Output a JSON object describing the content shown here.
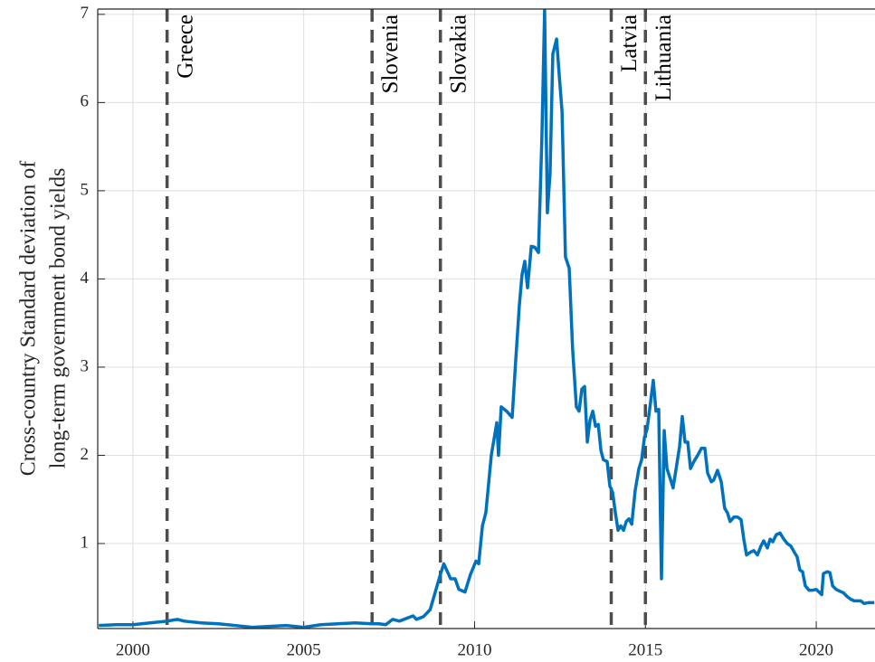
{
  "chart_data": {
    "type": "line",
    "ylabel": [
      "Cross-country Standard deviation of",
      "long-term government bond yields"
    ],
    "color": "#0072bd",
    "xlim": [
      1998.97,
      2021.72
    ],
    "ylim": [
      0.036,
      7.06
    ],
    "xticks": [
      2000,
      2005,
      2010,
      2015,
      2020
    ],
    "yticks": [
      1,
      2,
      3,
      4,
      5,
      6,
      7
    ],
    "grid": true,
    "annotations": [
      {
        "x": 2001,
        "label": "Greece"
      },
      {
        "x": 2007,
        "label": "Slovenia"
      },
      {
        "x": 2009,
        "label": "Slovakia"
      },
      {
        "x": 2014,
        "label": "Latvia"
      },
      {
        "x": 2015,
        "label": "Lithuania"
      }
    ],
    "x": [
      1999.0,
      1999.5,
      2000.0,
      2000.5,
      2001.0,
      2001.3,
      2001.5,
      2002.0,
      2002.5,
      2003.0,
      2003.5,
      2004.0,
      2004.5,
      2005.0,
      2005.5,
      2006.0,
      2006.5,
      2007.0,
      2007.2,
      2007.4,
      2007.6,
      2007.8,
      2008.0,
      2008.2,
      2008.3,
      2008.5,
      2008.7,
      2008.85,
      2009.0,
      2009.1,
      2009.3,
      2009.43,
      2009.54,
      2009.72,
      2009.88,
      2010.04,
      2010.12,
      2010.23,
      2010.33,
      2010.49,
      2010.65,
      2010.7,
      2010.78,
      2010.94,
      2011.1,
      2011.2,
      2011.31,
      2011.39,
      2011.47,
      2011.55,
      2011.66,
      2011.76,
      2011.87,
      2011.97,
      2012.05,
      2012.13,
      2012.21,
      2012.29,
      2012.4,
      2012.48,
      2012.56,
      2012.66,
      2012.77,
      2012.87,
      2012.98,
      2013.06,
      2013.14,
      2013.22,
      2013.3,
      2013.38,
      2013.46,
      2013.54,
      2013.62,
      2013.7,
      2013.77,
      2013.88,
      2013.96,
      2014.04,
      2014.12,
      2014.2,
      2014.28,
      2014.36,
      2014.44,
      2014.52,
      2014.6,
      2014.7,
      2014.81,
      2014.89,
      2014.97,
      2015.05,
      2015.15,
      2015.23,
      2015.31,
      2015.39,
      2015.47,
      2015.55,
      2015.63,
      2015.74,
      2015.81,
      2015.92,
      2016.0,
      2016.08,
      2016.16,
      2016.24,
      2016.32,
      2016.42,
      2016.53,
      2016.64,
      2016.74,
      2016.82,
      2016.93,
      2017.0,
      2017.11,
      2017.22,
      2017.32,
      2017.4,
      2017.48,
      2017.59,
      2017.7,
      2017.8,
      2017.88,
      2017.96,
      2018.07,
      2018.17,
      2018.28,
      2018.38,
      2018.46,
      2018.57,
      2018.65,
      2018.73,
      2018.83,
      2018.94,
      2019.05,
      2019.15,
      2019.26,
      2019.36,
      2019.44,
      2019.52,
      2019.6,
      2019.68,
      2019.79,
      2019.89,
      2020.0,
      2020.08,
      2020.16,
      2020.21,
      2020.32,
      2020.4,
      2020.48,
      2020.58,
      2020.69,
      2020.8,
      2020.9,
      2021.0,
      2021.11,
      2021.22,
      2021.3,
      2021.4,
      2021.54,
      2021.7
    ],
    "values": [
      0.07,
      0.08,
      0.08,
      0.1,
      0.12,
      0.14,
      0.12,
      0.1,
      0.09,
      0.07,
      0.05,
      0.06,
      0.07,
      0.05,
      0.08,
      0.09,
      0.1,
      0.09,
      0.09,
      0.08,
      0.14,
      0.12,
      0.15,
      0.18,
      0.14,
      0.17,
      0.25,
      0.45,
      0.65,
      0.77,
      0.6,
      0.6,
      0.48,
      0.45,
      0.65,
      0.8,
      0.77,
      1.2,
      1.35,
      2.0,
      2.37,
      2.0,
      2.55,
      2.5,
      2.43,
      3.05,
      3.7,
      4.05,
      4.2,
      3.9,
      4.37,
      4.36,
      4.3,
      5.6,
      7.05,
      4.75,
      5.2,
      6.55,
      6.72,
      6.3,
      5.9,
      4.25,
      4.12,
      3.2,
      2.55,
      2.5,
      2.75,
      2.78,
      2.15,
      2.4,
      2.5,
      2.33,
      2.35,
      2.05,
      1.95,
      1.93,
      1.65,
      1.58,
      1.35,
      1.15,
      1.2,
      1.15,
      1.25,
      1.28,
      1.22,
      1.6,
      1.85,
      1.95,
      2.2,
      2.3,
      2.6,
      2.85,
      2.5,
      2.52,
      0.6,
      2.28,
      1.85,
      1.72,
      1.63,
      1.9,
      2.1,
      2.44,
      2.15,
      2.15,
      1.85,
      1.93,
      2.0,
      2.08,
      2.08,
      1.8,
      1.7,
      1.72,
      1.83,
      1.7,
      1.4,
      1.35,
      1.25,
      1.3,
      1.3,
      1.27,
      1.05,
      0.87,
      0.9,
      0.92,
      0.87,
      0.97,
      1.03,
      0.95,
      1.05,
      1.02,
      1.1,
      1.12,
      1.05,
      1.0,
      0.97,
      0.9,
      0.85,
      0.7,
      0.68,
      0.52,
      0.47,
      0.47,
      0.48,
      0.45,
      0.42,
      0.66,
      0.68,
      0.67,
      0.52,
      0.48,
      0.46,
      0.44,
      0.4,
      0.37,
      0.35,
      0.35,
      0.35,
      0.32,
      0.33,
      0.33
    ]
  }
}
